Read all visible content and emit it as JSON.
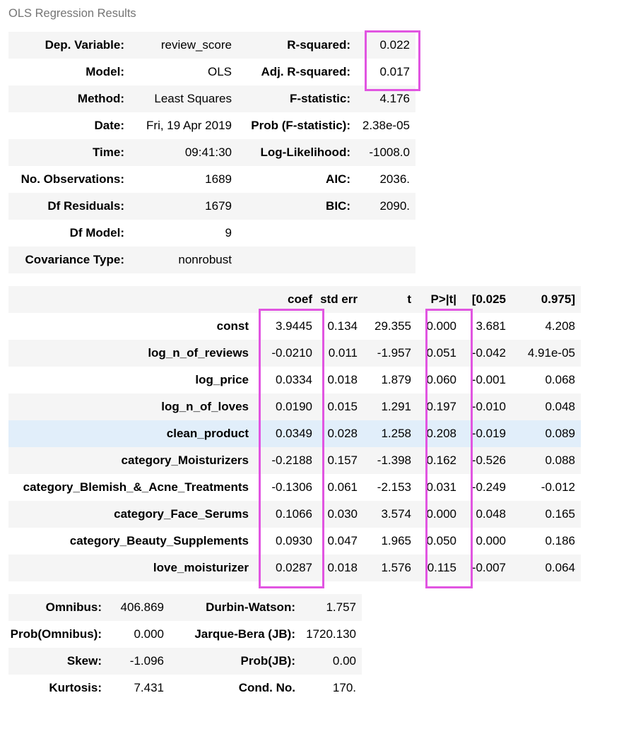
{
  "caption": "OLS Regression Results",
  "summary": {
    "rows": [
      {
        "l1": "Dep. Variable:",
        "v1": "review_score",
        "l2": "R-squared:",
        "v2": "0.022"
      },
      {
        "l1": "Model:",
        "v1": "OLS",
        "l2": "Adj. R-squared:",
        "v2": "0.017"
      },
      {
        "l1": "Method:",
        "v1": "Least Squares",
        "l2": "F-statistic:",
        "v2": "4.176"
      },
      {
        "l1": "Date:",
        "v1": "Fri, 19 Apr 2019",
        "l2": "Prob (F-statistic):",
        "v2": "2.38e-05"
      },
      {
        "l1": "Time:",
        "v1": "09:41:30",
        "l2": "Log-Likelihood:",
        "v2": "-1008.0"
      },
      {
        "l1": "No. Observations:",
        "v1": "1689",
        "l2": "AIC:",
        "v2": "2036."
      },
      {
        "l1": "Df Residuals:",
        "v1": "1679",
        "l2": "BIC:",
        "v2": "2090."
      },
      {
        "l1": "Df Model:",
        "v1": "9",
        "l2": "",
        "v2": ""
      },
      {
        "l1": "Covariance Type:",
        "v1": "nonrobust",
        "l2": "",
        "v2": ""
      }
    ]
  },
  "coef": {
    "headers": [
      "",
      "coef",
      "std err",
      "t",
      "P>|t|",
      "[0.025",
      "0.975]"
    ],
    "rows": [
      [
        "const",
        "3.9445",
        "0.134",
        "29.355",
        "0.000",
        "3.681",
        "4.208"
      ],
      [
        "log_n_of_reviews",
        "-0.0210",
        "0.011",
        "-1.957",
        "0.051",
        "-0.042",
        "4.91e-05"
      ],
      [
        "log_price",
        "0.0334",
        "0.018",
        "1.879",
        "0.060",
        "-0.001",
        "0.068"
      ],
      [
        "log_n_of_loves",
        "0.0190",
        "0.015",
        "1.291",
        "0.197",
        "-0.010",
        "0.048"
      ],
      [
        "clean_product",
        "0.0349",
        "0.028",
        "1.258",
        "0.208",
        "-0.019",
        "0.089"
      ],
      [
        "category_Moisturizers",
        "-0.2188",
        "0.157",
        "-1.398",
        "0.162",
        "-0.526",
        "0.088"
      ],
      [
        "category_Blemish_&_Acne_Treatments",
        "-0.1306",
        "0.061",
        "-2.153",
        "0.031",
        "-0.249",
        "-0.012"
      ],
      [
        "category_Face_Serums",
        "0.1066",
        "0.030",
        "3.574",
        "0.000",
        "0.048",
        "0.165"
      ],
      [
        "category_Beauty_Supplements",
        "0.0930",
        "0.047",
        "1.965",
        "0.050",
        "0.000",
        "0.186"
      ],
      [
        "love_moisturizer",
        "0.0287",
        "0.018",
        "1.576",
        "0.115",
        "-0.007",
        "0.064"
      ]
    ]
  },
  "diagnostics": {
    "rows": [
      {
        "l1": "Omnibus:",
        "v1": "406.869",
        "l2": "Durbin-Watson:",
        "v2": "1.757"
      },
      {
        "l1": "Prob(Omnibus):",
        "v1": "0.000",
        "l2": "Jarque-Bera (JB):",
        "v2": "1720.130"
      },
      {
        "l1": "Skew:",
        "v1": "-1.096",
        "l2": "Prob(JB):",
        "v2": "0.00"
      },
      {
        "l1": "Kurtosis:",
        "v1": "7.431",
        "l2": "Cond. No.",
        "v2": "170."
      }
    ]
  },
  "highlight": {
    "box_color": "#e155e1",
    "row_color": "#e1eefa"
  }
}
